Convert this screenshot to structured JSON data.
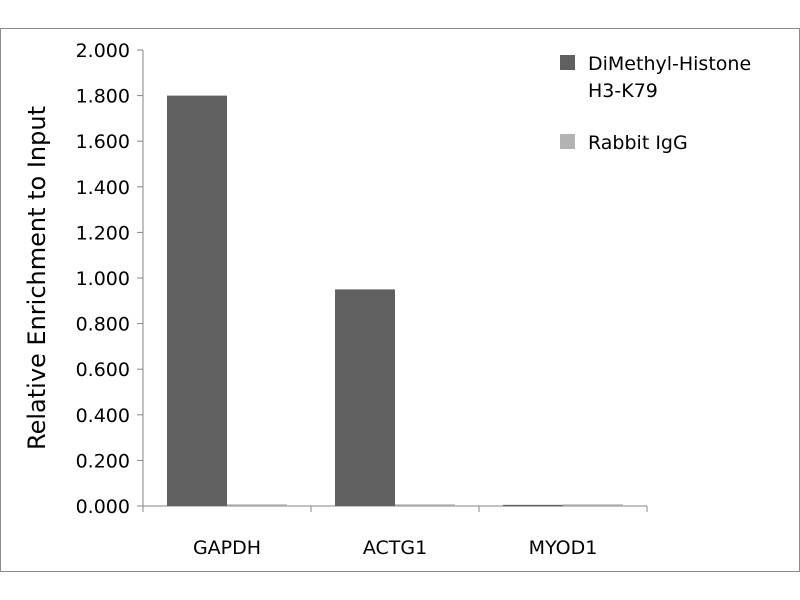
{
  "chart_data": {
    "type": "bar",
    "title": "",
    "xlabel": "",
    "ylabel": "Relative Enrichment to Input",
    "ylim": [
      0,
      2
    ],
    "yticks": [
      "0.000",
      "0.200",
      "0.400",
      "0.600",
      "0.800",
      "1.000",
      "1.200",
      "1.400",
      "1.600",
      "1.800",
      "2.000"
    ],
    "categories": [
      "GAPDH",
      "ACTG1",
      "MYOD1"
    ],
    "series": [
      {
        "name": "DiMethyl-Histone H3-K79",
        "legend_lines": [
          "DiMethyl-Histone",
          "H3-K79"
        ],
        "color": "#606060",
        "values": [
          1.8,
          0.95,
          0.005
        ]
      },
      {
        "name": "Rabbit IgG",
        "legend_lines": [
          "Rabbit IgG"
        ],
        "color": "#b3b3b3",
        "values": [
          0.003,
          0.003,
          0.003
        ]
      }
    ],
    "grid": false,
    "legend_position": "top-right"
  }
}
